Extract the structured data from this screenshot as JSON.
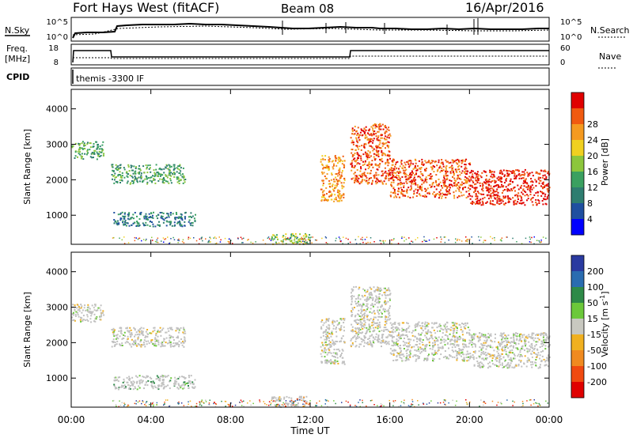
{
  "header": {
    "radar": "Fort Hays West (fitACF)",
    "beam": "Beam 08",
    "date": "16/Apr/2016"
  },
  "status_panel": {
    "nsky_label": "N.Sky",
    "nsearch_label": "N.Search",
    "noise_ticks_left": [
      "10^5",
      "10^0"
    ],
    "noise_ticks_right": [
      "10^5",
      "10^0"
    ],
    "freq_label_top": "Freq.",
    "freq_label_unit": "[MHz]",
    "freq_ticks": [
      "18",
      "8"
    ],
    "nave_label": "Nave",
    "nave_ticks": [
      "60",
      "0"
    ],
    "cpid_label": "CPID",
    "cpid_value": "themis -3300 IF"
  },
  "colors": {
    "power_scale": [
      "#0000ff",
      "#1f4fa0",
      "#2e7d70",
      "#3aa060",
      "#8cc63c",
      "#f0d020",
      "#f59a20",
      "#f05a10",
      "#e00000"
    ],
    "velocity_scale": [
      "#2a3aa0",
      "#2a6cb0",
      "#2e8a48",
      "#6cc83a",
      "#c8c8c0",
      "#f0b020",
      "#f08a20",
      "#f04a10",
      "#e00000"
    ],
    "ground_scatter": "#c0c0c0"
  },
  "time_axis": {
    "title": "Time UT",
    "ticks": [
      "00:00",
      "04:00",
      "08:00",
      "12:00",
      "16:00",
      "20:00",
      "00:00"
    ]
  },
  "chart_data": [
    {
      "type": "heatmap",
      "title": "Power",
      "ylabel": "Slant Range [km]",
      "xlabel": "Time UT",
      "x_range_hours": [
        0,
        24
      ],
      "ylim": [
        180,
        4550
      ],
      "yticks": [
        1000,
        2000,
        3000,
        4000
      ],
      "colorbar": {
        "label": "Power [dB]",
        "ticks": [
          4,
          8,
          12,
          16,
          20,
          24,
          28
        ]
      },
      "regions": [
        {
          "t0": 0.0,
          "t1": 1.6,
          "r0": 2600,
          "r1": 3100,
          "level": 3
        },
        {
          "t0": 2.0,
          "t1": 5.7,
          "r0": 1900,
          "r1": 2450,
          "level": 3
        },
        {
          "t0": 2.1,
          "t1": 6.2,
          "r0": 700,
          "r1": 1100,
          "level": 2
        },
        {
          "t0": 10.0,
          "t1": 12.0,
          "r0": 200,
          "r1": 500,
          "level": 4
        },
        {
          "t0": 12.5,
          "t1": 13.7,
          "r0": 1400,
          "r1": 2700,
          "level": 6
        },
        {
          "t0": 14.0,
          "t1": 16.0,
          "r0": 1900,
          "r1": 3600,
          "level": 7
        },
        {
          "t0": 16.0,
          "t1": 20.0,
          "r0": 1500,
          "r1": 2600,
          "level": 7
        },
        {
          "t0": 20.0,
          "t1": 24.0,
          "r0": 1300,
          "r1": 2300,
          "level": 8
        }
      ]
    },
    {
      "type": "heatmap",
      "title": "Velocity",
      "ylabel": "Slant Range [km]",
      "xlabel": "Time UT",
      "x_range_hours": [
        0,
        24
      ],
      "ylim": [
        180,
        4550
      ],
      "yticks": [
        1000,
        2000,
        3000,
        4000
      ],
      "colorbar": {
        "label": "Velocity [m s^-1]",
        "ticks": [
          200,
          100,
          50,
          15,
          -15,
          -50,
          -100,
          -200
        ]
      },
      "regions": [
        {
          "t0": 0.0,
          "t1": 1.6,
          "r0": 2600,
          "r1": 3100,
          "level": 4
        },
        {
          "t0": 2.0,
          "t1": 5.7,
          "r0": 1900,
          "r1": 2450,
          "level": 4
        },
        {
          "t0": 2.1,
          "t1": 6.2,
          "r0": 700,
          "r1": 1100,
          "level": 3
        },
        {
          "t0": 10.0,
          "t1": 12.0,
          "r0": 200,
          "r1": 500,
          "level": 6
        },
        {
          "t0": 12.5,
          "t1": 13.7,
          "r0": 1400,
          "r1": 2700,
          "level": 4
        },
        {
          "t0": 14.0,
          "t1": 16.0,
          "r0": 1900,
          "r1": 3600,
          "level": 4
        },
        {
          "t0": 16.0,
          "t1": 20.0,
          "r0": 1500,
          "r1": 2600,
          "level": 4
        },
        {
          "t0": 20.0,
          "t1": 24.0,
          "r0": 1300,
          "r1": 2300,
          "level": 4
        }
      ]
    }
  ]
}
